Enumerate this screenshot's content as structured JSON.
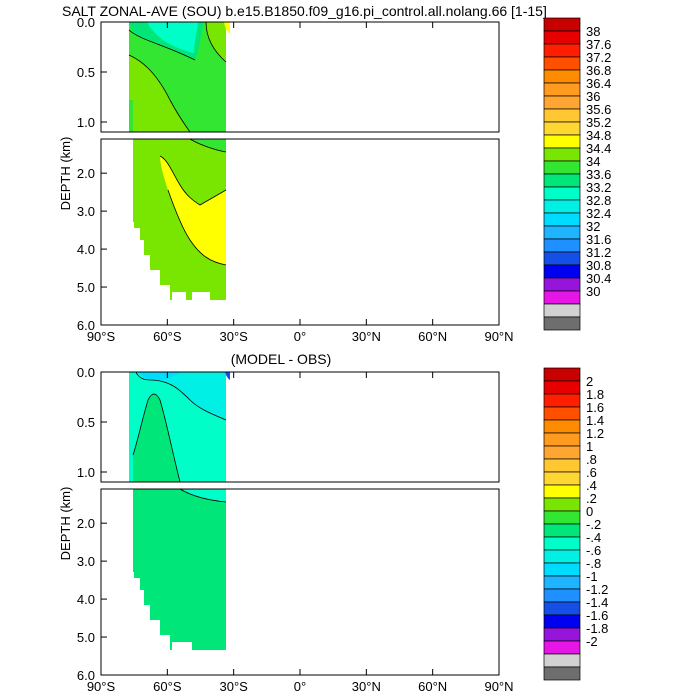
{
  "title": "SALT ZONAL-AVE (SOU) b.e15.B1850.f09_g16.pi_control.all.nolang.66 [1-15]",
  "colors": {
    "c1": "#6e6e6e",
    "c2": "#d2d2d2",
    "c3": "#e616e6",
    "c4": "#9614dc",
    "c5": "#0000f0",
    "c6": "#1450e6",
    "c7": "#1e90ff",
    "c8": "#1eb4ff",
    "c9": "#00dcff",
    "c10": "#00f0e6",
    "c11": "#00ffc8",
    "c12": "#00e678",
    "c13": "#32e632",
    "c14": "#78e600",
    "c15": "#ffff00",
    "c16": "#ffd732",
    "c17": "#ffc832",
    "c18": "#ffa532",
    "c19": "#ff9b1e",
    "c20": "#ff8c00",
    "c21": "#ff5000",
    "c22": "#ff1e00",
    "c23": "#e60000",
    "c24": "#c80000"
  },
  "chart_data": [
    {
      "type": "contour",
      "title": "SALT ZONAL-AVE (SOU) b.e15.B1850.f09_g16.pi_control.all.nolang.66 [1-15]",
      "ylabel": "DEPTH (km)",
      "x_ticks": [
        "90°S",
        "60°S",
        "30°S",
        "0°",
        "30°N",
        "60°N",
        "90°N"
      ],
      "upper_y_ticks": [
        "0.0",
        "0.5",
        "1.0"
      ],
      "lower_y_ticks": [
        "2.0",
        "3.0",
        "4.0",
        "5.0",
        "6.0"
      ],
      "xlim": [
        -90,
        90
      ],
      "upper_ylim": [
        1.1,
        0.0
      ],
      "lower_ylim": [
        6.0,
        1.1
      ],
      "colorbar_labels": [
        "38",
        "37.6",
        "37.2",
        "36.8",
        "36.4",
        "36",
        "35.6",
        "35.2",
        "34.8",
        "34.4",
        "34",
        "33.6",
        "33.2",
        "32.8",
        "32.4",
        "32",
        "31.6",
        "31.2",
        "30.8",
        "30.4",
        "30"
      ],
      "colorbar_colors": [
        "c24",
        "c23",
        "c22",
        "c21",
        "c20",
        "c19",
        "c18",
        "c17",
        "c16",
        "c15",
        "c14",
        "c13",
        "c12",
        "c11",
        "c10",
        "c9",
        "c8",
        "c7",
        "c6",
        "c5",
        "c4",
        "c3",
        "c2",
        "c1"
      ]
    },
    {
      "type": "contour",
      "title": "(MODEL - OBS)",
      "ylabel": "DEPTH (km)",
      "x_ticks": [
        "90°S",
        "60°S",
        "30°S",
        "0°",
        "30°N",
        "60°N",
        "90°N"
      ],
      "upper_y_ticks": [
        "0.0",
        "0.5",
        "1.0"
      ],
      "lower_y_ticks": [
        "2.0",
        "3.0",
        "4.0",
        "5.0",
        "6.0"
      ],
      "xlim": [
        -90,
        90
      ],
      "upper_ylim": [
        1.1,
        0.0
      ],
      "lower_ylim": [
        6.0,
        1.1
      ],
      "colorbar_labels": [
        "2",
        "1.8",
        "1.6",
        "1.4",
        "1.2",
        "1",
        ".8",
        ".6",
        ".4",
        ".2",
        "0",
        "-.2",
        "-.4",
        "-.6",
        "-.8",
        "-1",
        "-1.2",
        "-1.4",
        "-1.6",
        "-1.8",
        "-2"
      ],
      "colorbar_colors": [
        "c24",
        "c23",
        "c22",
        "c21",
        "c20",
        "c19",
        "c18",
        "c17",
        "c16",
        "c15",
        "c14",
        "c13",
        "c12",
        "c11",
        "c10",
        "c9",
        "c8",
        "c7",
        "c6",
        "c5",
        "c4",
        "c3",
        "c2",
        "c1"
      ]
    }
  ]
}
